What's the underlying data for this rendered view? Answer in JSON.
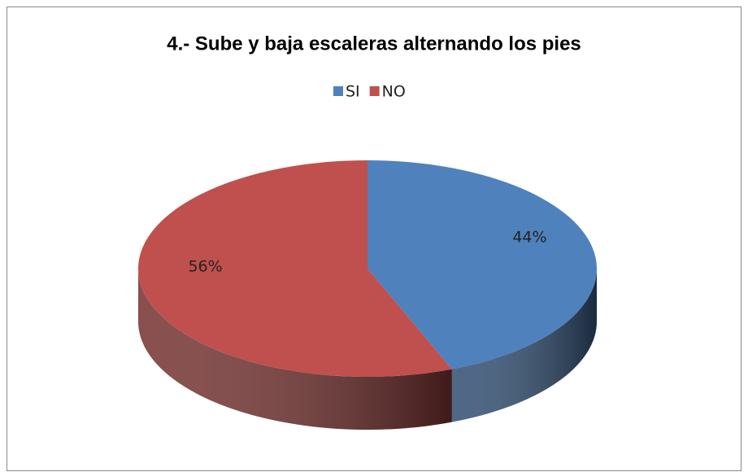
{
  "chart_data": {
    "type": "pie",
    "title": "4.- Sube y baja escaleras alternando los pies",
    "categories": [
      "SI",
      "NO"
    ],
    "values": [
      44,
      56
    ],
    "value_labels": [
      "44%",
      "56%"
    ],
    "colors": [
      "#4f81bd",
      "#c0504d"
    ],
    "legend": "top",
    "style": "3d"
  }
}
